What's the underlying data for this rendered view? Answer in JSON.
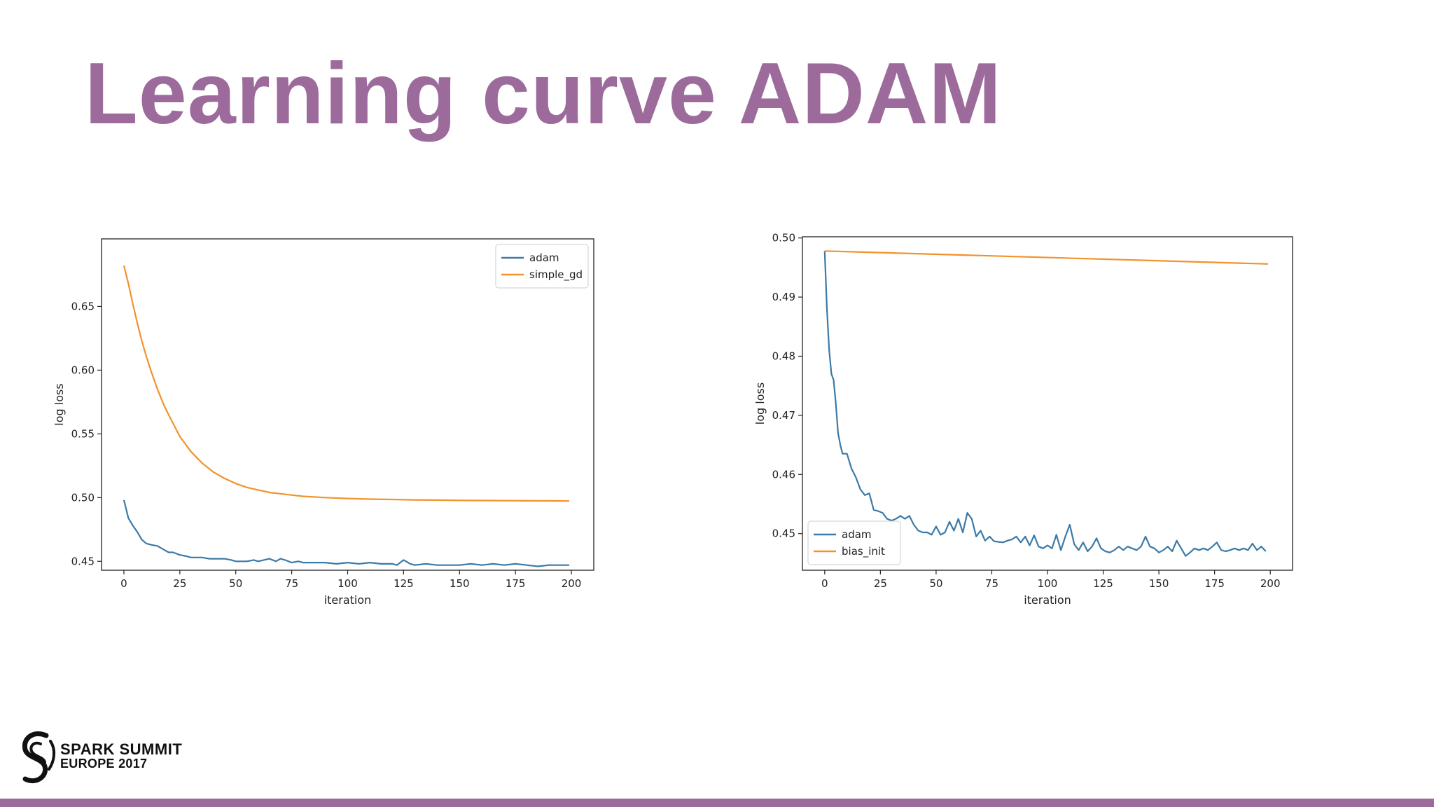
{
  "slide": {
    "title": "Learning curve ADAM",
    "accent_color": "#9c6b9c",
    "logo": {
      "icon": "spark-summit-logo-icon",
      "line1": "SPARK SUMMIT",
      "line2": "EUROPE 2017"
    }
  },
  "chart_data": [
    {
      "type": "line",
      "title": "",
      "xlabel": "iteration",
      "ylabel": "log loss",
      "xlim": [
        -10,
        210
      ],
      "ylim": [
        0.443,
        0.703
      ],
      "xticks": [
        0,
        25,
        50,
        75,
        100,
        125,
        150,
        175,
        200
      ],
      "yticks": [
        0.45,
        0.5,
        0.55,
        0.6,
        0.65
      ],
      "ytick_labels": [
        "0.45",
        "0.50",
        "0.55",
        "0.60",
        "0.65"
      ],
      "legend": "top-right",
      "grid": false,
      "series": [
        {
          "name": "adam",
          "color": "#3b7aa6",
          "x": [
            0,
            2,
            4,
            6,
            8,
            10,
            12,
            15,
            18,
            20,
            22,
            25,
            28,
            30,
            32,
            35,
            38,
            40,
            42,
            45,
            48,
            50,
            55,
            58,
            60,
            65,
            68,
            70,
            72,
            75,
            78,
            80,
            85,
            90,
            95,
            100,
            105,
            110,
            115,
            120,
            122,
            125,
            128,
            130,
            135,
            140,
            145,
            150,
            155,
            160,
            165,
            170,
            175,
            180,
            185,
            190,
            195,
            199
          ],
          "y": [
            0.498,
            0.484,
            0.478,
            0.473,
            0.467,
            0.464,
            0.463,
            0.462,
            0.459,
            0.457,
            0.457,
            0.455,
            0.454,
            0.453,
            0.453,
            0.453,
            0.452,
            0.452,
            0.452,
            0.452,
            0.451,
            0.45,
            0.45,
            0.451,
            0.45,
            0.452,
            0.45,
            0.452,
            0.451,
            0.449,
            0.45,
            0.449,
            0.449,
            0.449,
            0.448,
            0.449,
            0.448,
            0.449,
            0.448,
            0.448,
            0.447,
            0.451,
            0.448,
            0.447,
            0.448,
            0.447,
            0.447,
            0.447,
            0.448,
            0.447,
            0.448,
            0.447,
            0.448,
            0.447,
            0.446,
            0.447,
            0.447,
            0.447
          ]
        },
        {
          "name": "simple_gd",
          "color": "#f2922b",
          "x": [
            0,
            2,
            4,
            6,
            8,
            10,
            12,
            15,
            18,
            20,
            25,
            30,
            35,
            40,
            45,
            50,
            55,
            60,
            65,
            70,
            75,
            80,
            90,
            100,
            110,
            120,
            130,
            140,
            150,
            160,
            170,
            180,
            190,
            199
          ],
          "y": [
            0.682,
            0.668,
            0.652,
            0.637,
            0.623,
            0.611,
            0.6,
            0.585,
            0.572,
            0.565,
            0.548,
            0.536,
            0.527,
            0.52,
            0.515,
            0.511,
            0.508,
            0.506,
            0.504,
            0.503,
            0.502,
            0.501,
            0.5,
            0.4993,
            0.4988,
            0.4985,
            0.4982,
            0.498,
            0.4978,
            0.4977,
            0.4976,
            0.4975,
            0.4974,
            0.4973
          ]
        }
      ]
    },
    {
      "type": "line",
      "title": "",
      "xlabel": "iteration",
      "ylabel": "log loss",
      "xlim": [
        -10,
        210
      ],
      "ylim": [
        0.4438,
        0.5002
      ],
      "xticks": [
        0,
        25,
        50,
        75,
        100,
        125,
        150,
        175,
        200
      ],
      "yticks": [
        0.45,
        0.46,
        0.47,
        0.48,
        0.49,
        0.5
      ],
      "ytick_labels": [
        "0.45",
        "0.46",
        "0.47",
        "0.48",
        "0.49",
        "0.50"
      ],
      "legend": "bottom-left",
      "grid": false,
      "series": [
        {
          "name": "adam",
          "color": "#3b7aa6",
          "x": [
            0,
            1,
            2,
            3,
            4,
            5,
            6,
            7,
            8,
            9,
            10,
            12,
            14,
            16,
            18,
            20,
            22,
            24,
            26,
            28,
            30,
            32,
            34,
            36,
            38,
            40,
            42,
            44,
            46,
            48,
            50,
            52,
            54,
            56,
            58,
            60,
            62,
            64,
            66,
            68,
            70,
            72,
            74,
            76,
            78,
            80,
            82,
            84,
            86,
            88,
            90,
            92,
            94,
            96,
            98,
            100,
            102,
            104,
            106,
            108,
            110,
            112,
            114,
            116,
            118,
            120,
            122,
            124,
            126,
            128,
            130,
            132,
            134,
            136,
            138,
            140,
            142,
            144,
            146,
            148,
            150,
            152,
            154,
            156,
            158,
            160,
            162,
            164,
            166,
            168,
            170,
            172,
            174,
            176,
            178,
            180,
            182,
            184,
            186,
            188,
            190,
            192,
            194,
            196,
            198
          ],
          "y": [
            0.4978,
            0.488,
            0.481,
            0.477,
            0.476,
            0.472,
            0.467,
            0.465,
            0.4635,
            0.4635,
            0.4635,
            0.461,
            0.4595,
            0.4575,
            0.4565,
            0.4568,
            0.454,
            0.4538,
            0.4535,
            0.4525,
            0.4522,
            0.4525,
            0.453,
            0.4525,
            0.453,
            0.4515,
            0.4505,
            0.4502,
            0.4502,
            0.4498,
            0.4512,
            0.4498,
            0.4502,
            0.452,
            0.4505,
            0.4525,
            0.4502,
            0.4535,
            0.4525,
            0.4495,
            0.4505,
            0.4488,
            0.4495,
            0.4487,
            0.4486,
            0.4485,
            0.4488,
            0.449,
            0.4495,
            0.4485,
            0.4495,
            0.448,
            0.4497,
            0.4478,
            0.4475,
            0.448,
            0.4475,
            0.4498,
            0.4472,
            0.4495,
            0.4515,
            0.4482,
            0.4472,
            0.4485,
            0.447,
            0.4478,
            0.4492,
            0.4475,
            0.447,
            0.4468,
            0.4472,
            0.4478,
            0.4472,
            0.4478,
            0.4475,
            0.4472,
            0.4478,
            0.4495,
            0.4478,
            0.4475,
            0.4468,
            0.4472,
            0.4478,
            0.447,
            0.4488,
            0.4475,
            0.4462,
            0.4468,
            0.4475,
            0.4472,
            0.4475,
            0.4472,
            0.4478,
            0.4485,
            0.4472,
            0.447,
            0.4472,
            0.4475,
            0.4472,
            0.4475,
            0.4472,
            0.4483,
            0.4472,
            0.4478,
            0.447
          ]
        },
        {
          "name": "bias_init",
          "color": "#f2922b",
          "x": [
            0,
            199
          ],
          "y": [
            0.4978,
            0.4956
          ]
        }
      ]
    }
  ]
}
